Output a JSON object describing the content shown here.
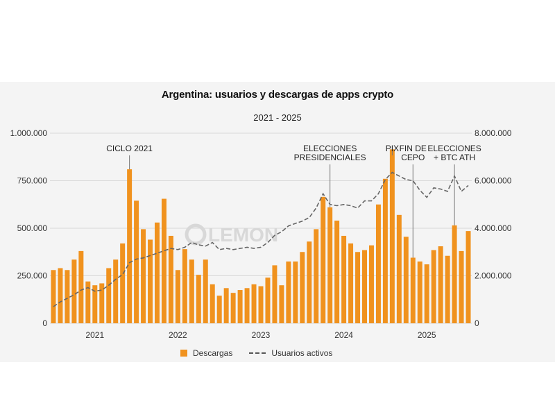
{
  "chart_data": {
    "type": "bar+line",
    "title": "Argentina: usuarios y descargas de apps crypto",
    "subtitle": "2021 - 2025",
    "watermark": "LEMON",
    "colors": {
      "bars": "#f0921e",
      "line": "#666666",
      "grid": "#d9d9d9",
      "background": "#f4f4f4"
    },
    "x_ticks": [
      "2021",
      "2022",
      "2023",
      "2024",
      "2025"
    ],
    "y_left": {
      "ylim": [
        0,
        1000000
      ],
      "ticks": [
        "0",
        "250.000",
        "500.000",
        "750.000",
        "1.000.000"
      ]
    },
    "y_right": {
      "ylim": [
        0,
        8000000
      ],
      "ticks": [
        "0",
        "2.000.000",
        "4.000.000",
        "6.000.000",
        "8.000.000"
      ]
    },
    "series": [
      {
        "name": "Descargas",
        "axis": "left",
        "start": "2020-07",
        "values": [
          280000,
          290000,
          280000,
          335000,
          380000,
          220000,
          200000,
          210000,
          290000,
          335000,
          420000,
          810000,
          645000,
          495000,
          440000,
          530000,
          655000,
          460000,
          280000,
          390000,
          335000,
          255000,
          335000,
          205000,
          145000,
          185000,
          160000,
          175000,
          185000,
          205000,
          195000,
          240000,
          305000,
          200000,
          325000,
          325000,
          375000,
          430000,
          495000,
          665000,
          610000,
          540000,
          460000,
          420000,
          375000,
          385000,
          410000,
          625000,
          760000,
          915000,
          570000,
          455000,
          345000,
          325000,
          310000,
          385000,
          405000,
          355000,
          515000,
          380000,
          485000
        ]
      },
      {
        "name": "Usuarios activos",
        "axis": "right",
        "style": "dashed",
        "values": [
          700000,
          900000,
          1050000,
          1200000,
          1400000,
          1500000,
          1350000,
          1400000,
          1600000,
          1850000,
          2050000,
          2550000,
          2700000,
          2750000,
          2850000,
          2950000,
          3050000,
          3150000,
          3100000,
          3200000,
          3400000,
          3300000,
          3250000,
          3400000,
          3100000,
          3150000,
          3100000,
          3150000,
          3200000,
          3150000,
          3200000,
          3400000,
          3700000,
          3850000,
          4100000,
          4200000,
          4300000,
          4450000,
          4850000,
          5450000,
          5000000,
          4950000,
          5000000,
          4950000,
          4850000,
          5150000,
          5150000,
          5450000,
          6050000,
          6350000,
          6200000,
          6050000,
          6000000,
          5600000,
          5300000,
          5700000,
          5650000,
          5550000,
          6200000,
          5550000,
          5800000
        ]
      }
    ],
    "annotations": [
      {
        "lines": [
          "CICLO 2021"
        ],
        "index": 11
      },
      {
        "lines": [
          "ELECCIONES",
          "PRESIDENCIALES"
        ],
        "index": 40
      },
      {
        "lines": [
          "PIX"
        ],
        "index": 49
      },
      {
        "lines": [
          "FIN DE",
          "CEPO"
        ],
        "index": 52
      },
      {
        "lines": [
          "ELECCIONES",
          "+ BTC ATH"
        ],
        "index": 58
      }
    ],
    "legend": [
      {
        "label": "Descargas"
      },
      {
        "label": "Usuarios activos"
      }
    ]
  }
}
